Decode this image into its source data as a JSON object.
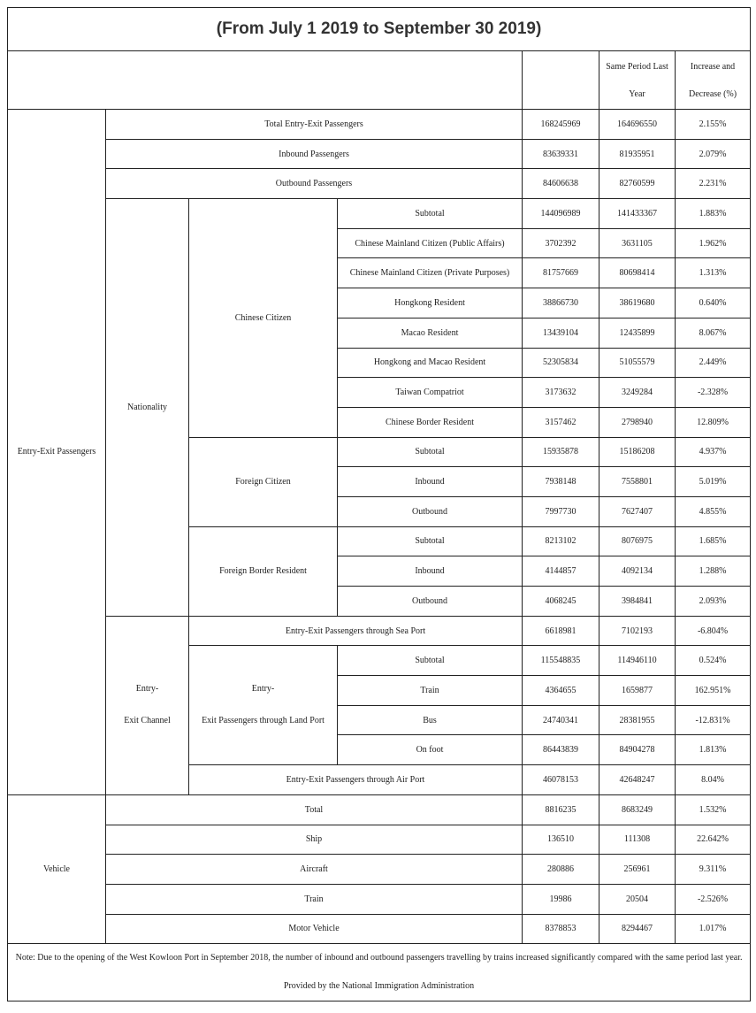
{
  "title": "(From July 1 2019 to September 30 2019)",
  "header": {
    "same_period": "Same Period Last Year",
    "change": "Increase and Decrease (%)"
  },
  "groups": {
    "passengers": "Entry-Exit Passengers",
    "nationality": "Nationality",
    "chinese_citizen": "Chinese Citizen",
    "foreign_citizen": "Foreign Citizen",
    "foreign_border": "Foreign Border Resident",
    "channel_1": "Entry-",
    "channel_2": "Exit Channel",
    "land_1": "Entry-",
    "land_2": "Exit Passengers through Land Port",
    "vehicle": "Vehicle"
  },
  "rows": [
    {
      "label": "Total Entry-Exit Passengers",
      "current": "168245969",
      "last_year": "164696550",
      "change": "2.155%"
    },
    {
      "label": "Inbound Passengers",
      "current": "83639331",
      "last_year": "81935951",
      "change": "2.079%"
    },
    {
      "label": "Outbound Passengers",
      "current": "84606638",
      "last_year": "82760599",
      "change": "2.231%"
    },
    {
      "label": "Subtotal",
      "current": "144096989",
      "last_year": "141433367",
      "change": "1.883%"
    },
    {
      "label": "Chinese Mainland Citizen (Public Affairs)",
      "current": "3702392",
      "last_year": "3631105",
      "change": "1.962%"
    },
    {
      "label": "Chinese Mainland Citizen (Private Purposes)",
      "current": "81757669",
      "last_year": "80698414",
      "change": "1.313%"
    },
    {
      "label": "Hongkong Resident",
      "current": "38866730",
      "last_year": "38619680",
      "change": "0.640%"
    },
    {
      "label": "Macao Resident",
      "current": "13439104",
      "last_year": "12435899",
      "change": "8.067%"
    },
    {
      "label": "Hongkong and Macao Resident",
      "current": "52305834",
      "last_year": "51055579",
      "change": "2.449%"
    },
    {
      "label": "Taiwan Compatriot",
      "current": "3173632",
      "last_year": "3249284",
      "change": "-2.328%"
    },
    {
      "label": "Chinese Border Resident",
      "current": "3157462",
      "last_year": "2798940",
      "change": "12.809%"
    },
    {
      "label": "Subtotal",
      "current": "15935878",
      "last_year": "15186208",
      "change": "4.937%"
    },
    {
      "label": "Inbound",
      "current": "7938148",
      "last_year": "7558801",
      "change": "5.019%"
    },
    {
      "label": "Outbound",
      "current": "7997730",
      "last_year": "7627407",
      "change": "4.855%"
    },
    {
      "label": "Subtotal",
      "current": "8213102",
      "last_year": "8076975",
      "change": "1.685%"
    },
    {
      "label": "Inbound",
      "current": "4144857",
      "last_year": "4092134",
      "change": "1.288%"
    },
    {
      "label": "Outbound",
      "current": "4068245",
      "last_year": "3984841",
      "change": "2.093%"
    },
    {
      "label": "Entry-Exit Passengers through Sea Port",
      "current": "6618981",
      "last_year": "7102193",
      "change": "-6.804%"
    },
    {
      "label": "Subtotal",
      "current": "115548835",
      "last_year": "114946110",
      "change": "0.524%"
    },
    {
      "label": "Train",
      "current": "4364655",
      "last_year": "1659877",
      "change": "162.951%"
    },
    {
      "label": "Bus",
      "current": "24740341",
      "last_year": "28381955",
      "change": "-12.831%"
    },
    {
      "label": "On foot",
      "current": "86443839",
      "last_year": "84904278",
      "change": "1.813%"
    },
    {
      "label": "Entry-Exit Passengers through Air Port",
      "current": "46078153",
      "last_year": "42648247",
      "change": "8.04%"
    },
    {
      "label": "Total",
      "current": "8816235",
      "last_year": "8683249",
      "change": "1.532%"
    },
    {
      "label": "Ship",
      "current": "136510",
      "last_year": "111308",
      "change": "22.642%"
    },
    {
      "label": "Aircraft",
      "current": "280886",
      "last_year": "256961",
      "change": "9.311%"
    },
    {
      "label": "Train",
      "current": "19986",
      "last_year": "20504",
      "change": "-2.526%"
    },
    {
      "label": "Motor Vehicle",
      "current": "8378853",
      "last_year": "8294467",
      "change": "1.017%"
    }
  ],
  "note": "Note: Due to the opening of the West Kowloon Port in September 2018, the number of inbound and outbound passengers travelling by trains increased significantly compared with the same period last year.",
  "provided_by": "Provided by the National Immigration Administration"
}
